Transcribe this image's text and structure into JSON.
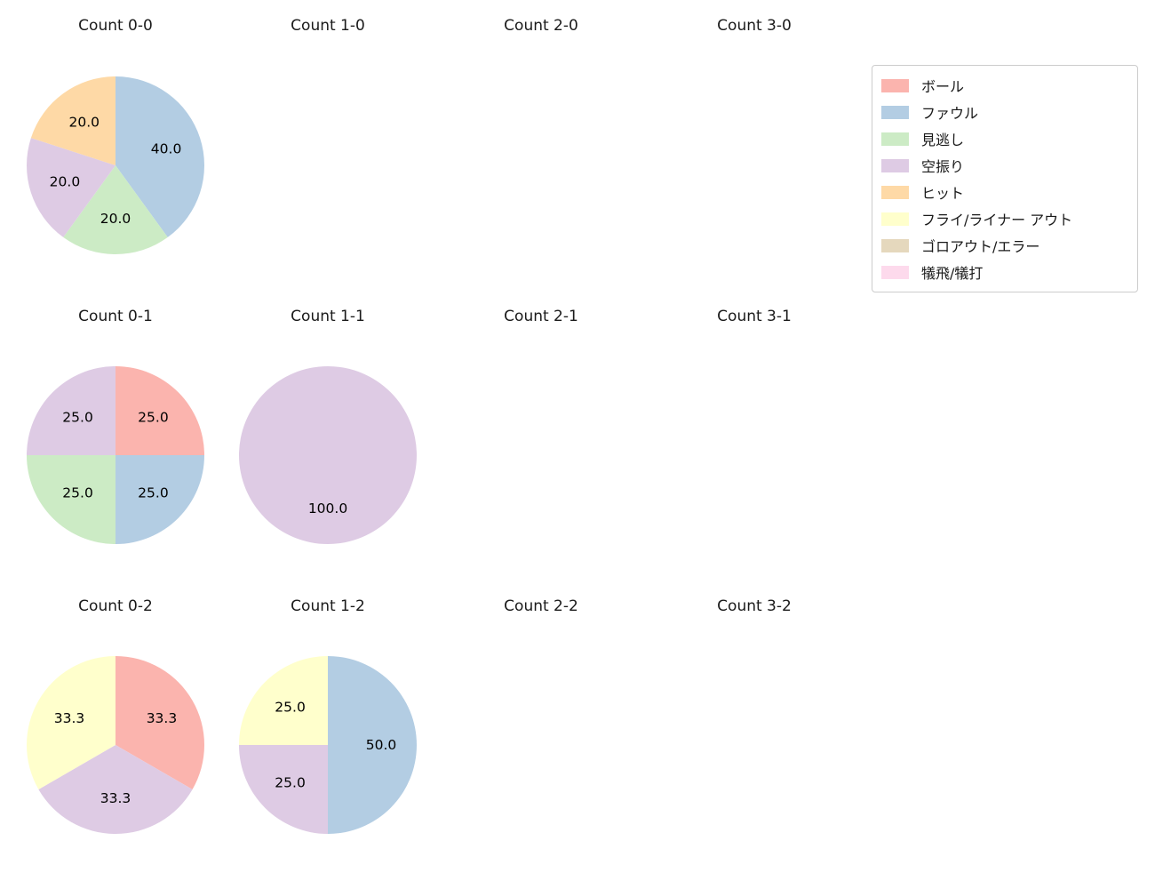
{
  "legend": {
    "entries": [
      {
        "label": "ボール",
        "color": "#fbb4ae"
      },
      {
        "label": "ファウル",
        "color": "#b3cde3"
      },
      {
        "label": "見逃し",
        "color": "#ccebc5"
      },
      {
        "label": "空振り",
        "color": "#decbe4"
      },
      {
        "label": "ヒット",
        "color": "#fed9a6"
      },
      {
        "label": "フライ/ライナー アウト",
        "color": "#ffffcc"
      },
      {
        "label": "ゴロアウト/エラー",
        "color": "#e5d8bd"
      },
      {
        "label": "犠飛/犠打",
        "color": "#fddaec"
      }
    ]
  },
  "chart_data": [
    {
      "type": "pie",
      "title": "Count 0-0",
      "labels": [
        "ファウル",
        "見逃し",
        "空振り",
        "ヒット"
      ],
      "values": [
        40.0,
        20.0,
        20.0,
        20.0
      ],
      "start_angle": 90,
      "direction": "clockwise",
      "value_format": "one-decimal-percent"
    },
    {
      "type": "pie",
      "title": "Count 1-0",
      "labels": [],
      "values": []
    },
    {
      "type": "pie",
      "title": "Count 2-0",
      "labels": [],
      "values": []
    },
    {
      "type": "pie",
      "title": "Count 3-0",
      "labels": [],
      "values": []
    },
    {
      "type": "pie",
      "title": "Count 0-1",
      "labels": [
        "ボール",
        "ファウル",
        "見逃し",
        "空振り"
      ],
      "values": [
        25.0,
        25.0,
        25.0,
        25.0
      ],
      "start_angle": 90,
      "direction": "clockwise",
      "value_format": "one-decimal-percent"
    },
    {
      "type": "pie",
      "title": "Count 1-1",
      "labels": [
        "空振り"
      ],
      "values": [
        100.0
      ],
      "start_angle": 90,
      "direction": "clockwise",
      "value_format": "one-decimal-percent"
    },
    {
      "type": "pie",
      "title": "Count 2-1",
      "labels": [],
      "values": []
    },
    {
      "type": "pie",
      "title": "Count 3-1",
      "labels": [],
      "values": []
    },
    {
      "type": "pie",
      "title": "Count 0-2",
      "labels": [
        "ボール",
        "空振り",
        "フライ/ライナー アウト"
      ],
      "values": [
        33.3,
        33.3,
        33.3
      ],
      "start_angle": 90,
      "direction": "clockwise",
      "value_format": "one-decimal-percent"
    },
    {
      "type": "pie",
      "title": "Count 1-2",
      "labels": [
        "ファウル",
        "空振り",
        "フライ/ライナー アウト"
      ],
      "values": [
        50.0,
        25.0,
        25.0
      ],
      "start_angle": 90,
      "direction": "clockwise",
      "value_format": "one-decimal-percent"
    },
    {
      "type": "pie",
      "title": "Count 2-2",
      "labels": [],
      "values": []
    },
    {
      "type": "pie",
      "title": "Count 3-2",
      "labels": [],
      "values": []
    }
  ]
}
